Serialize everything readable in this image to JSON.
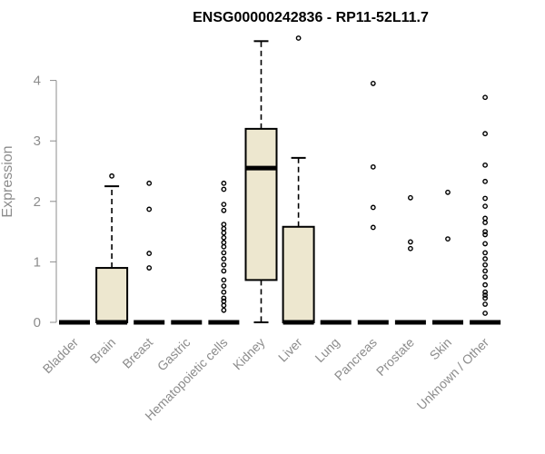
{
  "chart_data": {
    "type": "boxplot",
    "title": "ENSG00000242836 - RP11-52L11.7",
    "xlabel": "",
    "ylabel": "Expression",
    "ylim": [
      0,
      4.7
    ],
    "yticks": [
      0,
      1,
      2,
      3,
      4
    ],
    "grid": false,
    "box_fill": "#ede7cf",
    "categories": [
      "Bladder",
      "Brain",
      "Breast",
      "Gastric",
      "Hematopoietic cells",
      "Kidney",
      "Liver",
      "Lung",
      "Pancreas",
      "Prostate",
      "Skin",
      "Unknown / Other"
    ],
    "boxes": [
      {
        "category": "Bladder",
        "min": 0,
        "q1": 0,
        "median": 0,
        "q3": 0,
        "max": 0,
        "outliers": []
      },
      {
        "category": "Brain",
        "min": 0,
        "q1": 0,
        "median": 0,
        "q3": 0.9,
        "max": 2.25,
        "outliers": [
          2.42
        ]
      },
      {
        "category": "Breast",
        "min": 0,
        "q1": 0,
        "median": 0,
        "q3": 0,
        "max": 0,
        "outliers": [
          2.3,
          1.87,
          1.14,
          0.9
        ]
      },
      {
        "category": "Gastric",
        "min": 0,
        "q1": 0,
        "median": 0,
        "q3": 0,
        "max": 0,
        "outliers": []
      },
      {
        "category": "Hematopoietic cells",
        "min": 0,
        "q1": 0,
        "median": 0,
        "q3": 0,
        "max": 0,
        "outliers": [
          2.3,
          2.2,
          1.95,
          1.85,
          1.62,
          1.55,
          1.48,
          1.4,
          1.32,
          1.25,
          1.15,
          1.05,
          0.95,
          0.85,
          0.7,
          0.6,
          0.5,
          0.4,
          0.35,
          0.28,
          0.2
        ]
      },
      {
        "category": "Kidney",
        "min": 0,
        "q1": 0.7,
        "median": 2.55,
        "q3": 3.2,
        "max": 4.65,
        "outliers": []
      },
      {
        "category": "Liver",
        "min": 0,
        "q1": 0,
        "median": 0,
        "q3": 1.58,
        "max": 2.72,
        "outliers": [
          4.7
        ]
      },
      {
        "category": "Lung",
        "min": 0,
        "q1": 0,
        "median": 0,
        "q3": 0,
        "max": 0,
        "outliers": []
      },
      {
        "category": "Pancreas",
        "min": 0,
        "q1": 0,
        "median": 0,
        "q3": 0,
        "max": 0,
        "outliers": [
          3.95,
          2.57,
          1.9,
          1.57
        ]
      },
      {
        "category": "Prostate",
        "min": 0,
        "q1": 0,
        "median": 0,
        "q3": 0,
        "max": 0,
        "outliers": [
          2.06,
          1.33,
          1.22
        ]
      },
      {
        "category": "Skin",
        "min": 0,
        "q1": 0,
        "median": 0,
        "q3": 0,
        "max": 0,
        "outliers": [
          2.15,
          1.38
        ]
      },
      {
        "category": "Unknown / Other",
        "min": 0,
        "q1": 0,
        "median": 0,
        "q3": 0,
        "max": 0,
        "outliers": [
          3.72,
          3.12,
          2.6,
          2.33,
          2.05,
          1.92,
          1.72,
          1.65,
          1.5,
          1.45,
          1.3,
          1.15,
          1.05,
          0.95,
          0.85,
          0.75,
          0.62,
          0.5,
          0.45,
          0.4,
          0.3,
          0.15
        ]
      }
    ]
  }
}
